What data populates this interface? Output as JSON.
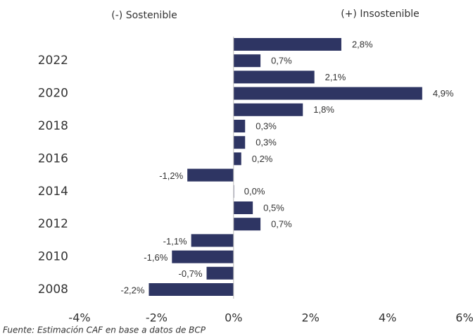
{
  "chart_data": {
    "type": "hbar",
    "annotations": [
      "(-) Sostenible",
      "(+) Insostenible"
    ],
    "source": "Fuente: Estimación CAF en base a datos de BCP",
    "categories": [
      "2008",
      null,
      "2010",
      null,
      "2012",
      null,
      "2014",
      null,
      "2016",
      null,
      "2018",
      null,
      "2020",
      null,
      "2022",
      null
    ],
    "values": [
      -2.2,
      -0.7,
      -1.6,
      -1.1,
      0.7,
      0.5,
      0.0,
      -1.2,
      0.2,
      0.3,
      0.3,
      1.8,
      4.9,
      2.1,
      0.7,
      2.8
    ],
    "value_labels": [
      "-2,2%",
      "-0,7%",
      "-1,6%",
      "-1,1%",
      "0,7%",
      "0,5%",
      "0,0%",
      "-1,2%",
      "0,2%",
      "0,3%",
      "0,3%",
      "1,8%",
      "4,9%",
      "2,1%",
      "0,7%",
      "2,8%"
    ],
    "color": "#2e3563",
    "xlim": [
      -4,
      6
    ],
    "xticks": [
      {
        "value": -4,
        "label": "-4%"
      },
      {
        "value": -2,
        "label": "-2%"
      },
      {
        "value": 0,
        "label": "0%"
      },
      {
        "value": 2,
        "label": "2%"
      },
      {
        "value": 4,
        "label": "4%"
      },
      {
        "value": 6,
        "label": "6%"
      }
    ]
  }
}
